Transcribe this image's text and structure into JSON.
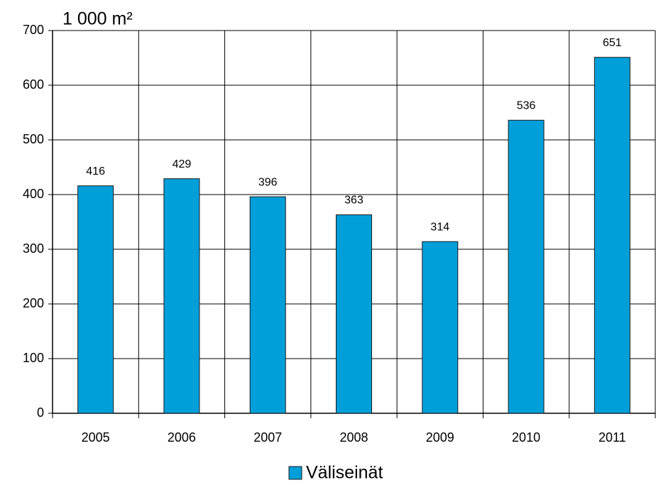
{
  "chart_data": {
    "type": "bar",
    "y_label": "1 000 m²",
    "categories": [
      "2005",
      "2006",
      "2007",
      "2008",
      "2009",
      "2010",
      "2011"
    ],
    "series": [
      {
        "name": "Väliseinät",
        "color": "#009fd9",
        "values": [
          416,
          429,
          396,
          363,
          314,
          536,
          651
        ]
      }
    ],
    "ylim": [
      0,
      700
    ],
    "yticks": [
      0,
      100,
      200,
      300,
      400,
      500,
      600,
      700
    ],
    "grid": true,
    "legend": "bottom"
  }
}
